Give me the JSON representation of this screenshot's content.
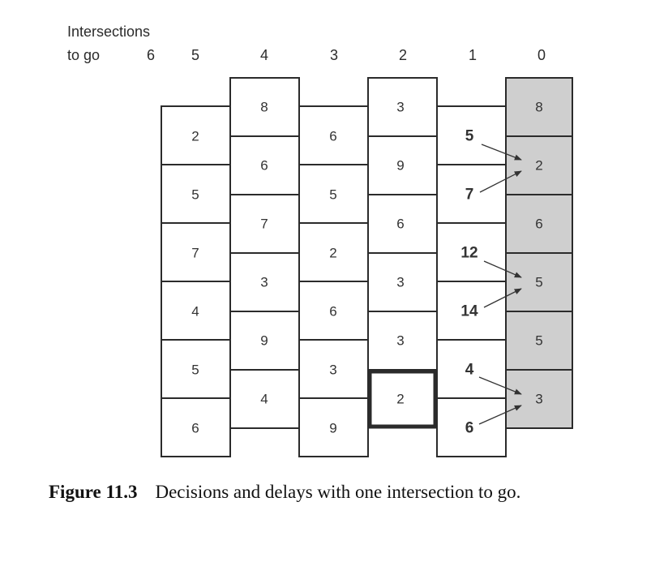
{
  "header": {
    "title_line1": "Intersections",
    "title_line2": "to go",
    "columns": [
      "6",
      "5",
      "4",
      "3",
      "2",
      "1",
      "0"
    ]
  },
  "grid": {
    "col5": [
      "2",
      "5",
      "7",
      "4",
      "5",
      "6"
    ],
    "col4": [
      "8",
      "6",
      "7",
      "3",
      "9",
      "4"
    ],
    "col3": [
      "6",
      "5",
      "2",
      "6",
      "3",
      "9"
    ],
    "col2": [
      "3",
      "9",
      "6",
      "3",
      "3",
      "2"
    ],
    "col1": [
      "5",
      "7",
      "12",
      "14",
      "4",
      "6"
    ],
    "col0": [
      "8",
      "2",
      "6",
      "5",
      "5",
      "3"
    ]
  },
  "highlighted_cell": {
    "column": "2",
    "value": "2"
  },
  "shaded_column": "0",
  "caption": {
    "label": "Figure 11.3",
    "text": "Decisions and delays with one intersection to go."
  }
}
